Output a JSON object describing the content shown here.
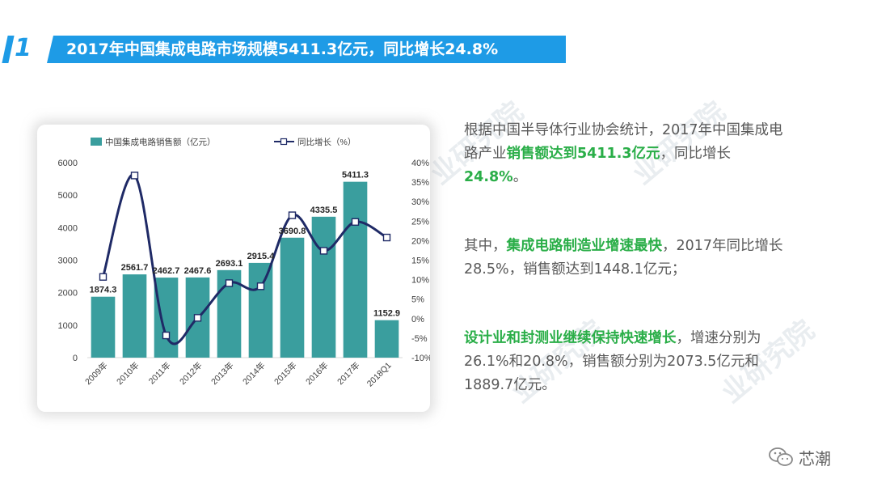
{
  "header": {
    "number": "1",
    "title": "2017年中国集成电路市场规模5411.3亿元，同比增长24.8%"
  },
  "chart_data": {
    "type": "bar",
    "categories": [
      "2009年",
      "2010年",
      "2011年",
      "2012年",
      "2013年",
      "2014年",
      "2015年",
      "2016年",
      "2017年",
      "2018Q1"
    ],
    "series": [
      {
        "name": "中国集成电路销售额（亿元）",
        "type": "bar",
        "axis": "left",
        "values": [
          1874.3,
          2561.7,
          2462.7,
          2467.6,
          2693.1,
          2915.4,
          3690.8,
          4335.5,
          5411.3,
          1152.9
        ],
        "labels": [
          "1874.3",
          "2561.7",
          "2462.7",
          "2467.6",
          "2693.1",
          "2915.4",
          "3690.8",
          "4335.5",
          "5411.3",
          "1152.9"
        ]
      },
      {
        "name": "同比增长（%）",
        "type": "line",
        "axis": "right",
        "values": [
          10.7,
          36.7,
          -4.3,
          0.2,
          9.1,
          8.3,
          26.5,
          17.4,
          24.8,
          20.8
        ]
      }
    ],
    "left_axis": {
      "min": 0,
      "max": 6000,
      "step": 1000,
      "ticks": [
        "0",
        "1000",
        "2000",
        "3000",
        "4000",
        "5000",
        "6000"
      ]
    },
    "right_axis": {
      "min": -10,
      "max": 40,
      "step": 5,
      "ticks": [
        "-10%",
        "-5%",
        "0%",
        "5%",
        "10%",
        "15%",
        "20%",
        "25%",
        "30%",
        "35%",
        "40%"
      ]
    },
    "legend_placement": "top",
    "grid": false,
    "colors": {
      "bar": "#3a9e9e",
      "line": "#1f2a66"
    }
  },
  "text": {
    "p1": [
      {
        "t": "根据中国半导体行业协会统计，2017年中国集成电路产业",
        "hl": false
      },
      {
        "t": "销售额达到5411.3亿元",
        "hl": true
      },
      {
        "t": "，同比增长",
        "hl": false
      },
      {
        "t": "24.8%",
        "hl": true
      },
      {
        "t": "。",
        "hl": false
      }
    ],
    "p2": [
      {
        "t": "其中，",
        "hl": false
      },
      {
        "t": "集成电路制造业增速最快",
        "hl": true
      },
      {
        "t": "，2017年同比增长28.5%，销售额达到1448.1亿元；",
        "hl": false
      }
    ],
    "p3": [
      {
        "t": "设计业和封测业继续保持快速增长",
        "hl": true
      },
      {
        "t": "，增速分别为26.1%和20.8%，销售额分别为2073.5亿元和1889.7亿元。",
        "hl": false
      }
    ]
  },
  "watermark": "业研究院",
  "footer": {
    "logo_text": "芯潮",
    "logo_icon": "wechat-icon"
  }
}
